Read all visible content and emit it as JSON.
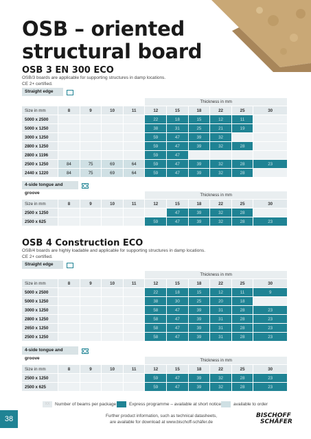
{
  "title": [
    "OSB – oriented",
    "structural board"
  ],
  "osb3": {
    "subtitle": "OSB 3 EN 300 ECO",
    "desc": [
      "OSB/3 boards are applicable for supporting structures in damp locations.",
      "CE 2+ certified."
    ],
    "straight": {
      "label": "Straight edge",
      "thickness_label": "Thickness in mm",
      "size_label": "Size in mm",
      "columns": [
        "8",
        "9",
        "10",
        "11",
        "12",
        "15",
        "18",
        "22",
        "25",
        "30"
      ],
      "rows": [
        {
          "size": "5000 x 2500",
          "cells": [
            "",
            "",
            "",
            "",
            "22",
            "18",
            "15",
            "12",
            "11",
            ""
          ]
        },
        {
          "size": "5000 x 1250",
          "cells": [
            "",
            "",
            "",
            "",
            "38",
            "31",
            "25",
            "21",
            "19",
            ""
          ]
        },
        {
          "size": "3000 x 1250",
          "cells": [
            "",
            "",
            "",
            "",
            "59",
            "47",
            "39",
            "32",
            "",
            ""
          ]
        },
        {
          "size": "2800 x 1250",
          "cells": [
            "",
            "",
            "",
            "",
            "59",
            "47",
            "39",
            "32",
            "28",
            ""
          ]
        },
        {
          "size": "2800 x 1196",
          "cells": [
            "",
            "",
            "",
            "",
            "59",
            "47",
            "",
            "",
            "",
            ""
          ]
        },
        {
          "size": "2500 x 1250",
          "cells": [
            "84",
            "75",
            "69",
            "64",
            "59",
            "47",
            "39",
            "32",
            "28",
            "23"
          ]
        },
        {
          "size": "2440 x 1220",
          "cells": [
            "84",
            "75",
            "69",
            "64",
            "59",
            "47",
            "39",
            "32",
            "28",
            ""
          ]
        }
      ]
    },
    "tongue": {
      "label": "4-side tongue and groove",
      "thickness_label": "Thickness in mm",
      "size_label": "Size in mm",
      "columns": [
        "8",
        "9",
        "10",
        "11",
        "12",
        "15",
        "18",
        "22",
        "25",
        "30"
      ],
      "rows": [
        {
          "size": "2500 x 1250",
          "cells": [
            "",
            "",
            "",
            "",
            "",
            "47",
            "39",
            "32",
            "28",
            ""
          ]
        },
        {
          "size": "2500 x 625",
          "cells": [
            "",
            "",
            "",
            "",
            "59",
            "47",
            "39",
            "32",
            "28",
            "23"
          ]
        }
      ]
    }
  },
  "osb4": {
    "subtitle": "OSB 4 Construction ECO",
    "desc": [
      "OSB/4 boards are highly loadable and applicable for supporting structures in damp locations.",
      "CE 2+ certified."
    ],
    "straight": {
      "label": "Straight edge",
      "thickness_label": "Thickness in mm",
      "size_label": "Size in mm",
      "columns": [
        "8",
        "9",
        "10",
        "11",
        "12",
        "15",
        "18",
        "22",
        "25",
        "30"
      ],
      "rows": [
        {
          "size": "5000 x 2500",
          "cells": [
            "",
            "",
            "",
            "",
            "22",
            "18",
            "15",
            "12",
            "11",
            "9"
          ]
        },
        {
          "size": "5000 x 1250",
          "cells": [
            "",
            "",
            "",
            "",
            "38",
            "30",
            "25",
            "20",
            "18",
            ""
          ]
        },
        {
          "size": "3000 x 1250",
          "cells": [
            "",
            "",
            "",
            "",
            "58",
            "47",
            "39",
            "31",
            "28",
            "23"
          ]
        },
        {
          "size": "2800 x 1250",
          "cells": [
            "",
            "",
            "",
            "",
            "58",
            "47",
            "39",
            "31",
            "28",
            "23"
          ]
        },
        {
          "size": "2650 x 1250",
          "cells": [
            "",
            "",
            "",
            "",
            "58",
            "47",
            "39",
            "31",
            "28",
            "23"
          ]
        },
        {
          "size": "2500 x 1250",
          "cells": [
            "",
            "",
            "",
            "",
            "58",
            "47",
            "39",
            "31",
            "28",
            "23"
          ]
        }
      ]
    },
    "tongue": {
      "label": "4-side tongue and groove",
      "thickness_label": "Thickness in mm",
      "size_label": "Size in mm",
      "columns": [
        "8",
        "9",
        "10",
        "11",
        "12",
        "15",
        "18",
        "22",
        "25",
        "30"
      ],
      "rows": [
        {
          "size": "2500 x 1250",
          "cells": [
            "",
            "",
            "",
            "",
            "59",
            "47",
            "39",
            "32",
            "28",
            "23"
          ]
        },
        {
          "size": "2500 x 625",
          "cells": [
            "",
            "",
            "",
            "",
            "59",
            "47",
            "39",
            "32",
            "28",
            "23"
          ]
        }
      ]
    }
  },
  "legend": {
    "swatch_text": "XX",
    "beams": "Number of beams per package",
    "express": "Express programme – available at short notice",
    "order": "available to order"
  },
  "page_number": "38",
  "footer": [
    "Further product information, such as technical datasheets,",
    "are available for download at www.bischoff-schäfer.de"
  ],
  "logo": [
    "BISCHOFF",
    "SCHÄFER"
  ],
  "colors": {
    "teal": "#1f8394",
    "light_teal": "#cfe0e4",
    "row_bg": "#e4eaed"
  }
}
